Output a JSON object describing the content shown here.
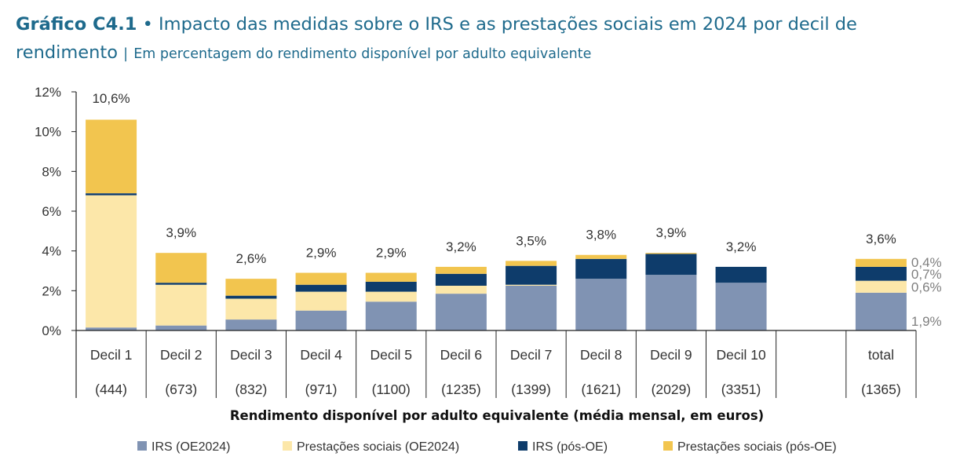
{
  "header": {
    "label": "Gráfico C4.1",
    "bullet": "•",
    "title": "Impacto das medidas sobre o IRS e as prestações sociais em 2024 por decil de rendimento",
    "separator": "|",
    "subtitle": "Em percentagem do rendimento disponível por adulto equivalente"
  },
  "colors": {
    "irs_oe": "#8093b3",
    "prest_oe": "#fce7a9",
    "irs_pos": "#0e3c6b",
    "prest_pos": "#f2c54f",
    "axis": "#222222"
  },
  "chart_data": {
    "type": "bar",
    "stacked": true,
    "title": "Impacto das medidas sobre o IRS e as prestações sociais em 2024 por decil de rendimento",
    "xlabel": "Rendimento disponível por adulto equivalente (média mensal, em euros)",
    "ylabel": "",
    "ylim": [
      0,
      12
    ],
    "yticks": [
      "0%",
      "2%",
      "4%",
      "6%",
      "8%",
      "10%",
      "12%"
    ],
    "categories": [
      "Decil 1",
      "Decil 2",
      "Decil 3",
      "Decil 4",
      "Decil 5",
      "Decil 6",
      "Decil 7",
      "Decil 8",
      "Decil 9",
      "Decil 10",
      "",
      "total"
    ],
    "incomes": [
      "(444)",
      "(673)",
      "(832)",
      "(971)",
      "(1100)",
      "(1235)",
      "(1399)",
      "(1621)",
      "(2029)",
      "(3351)",
      "",
      "(1365)"
    ],
    "total_labels": [
      "10,6%",
      "3,9%",
      "2,6%",
      "2,9%",
      "2,9%",
      "3,2%",
      "3,5%",
      "3,8%",
      "3,9%",
      "3,2%",
      "",
      "3,6%"
    ],
    "series": [
      {
        "name": "IRS (OE2024)",
        "key": "irs_oe",
        "values": [
          0.15,
          0.25,
          0.55,
          1.0,
          1.45,
          1.85,
          2.25,
          2.6,
          2.8,
          2.4,
          null,
          1.9
        ]
      },
      {
        "name": "Prestações sociais (OE2024)",
        "key": "prest_oe",
        "values": [
          6.65,
          2.05,
          1.05,
          0.95,
          0.5,
          0.4,
          0.05,
          0.0,
          0.0,
          0.0,
          null,
          0.6
        ]
      },
      {
        "name": "IRS (pós-OE)",
        "key": "irs_pos",
        "values": [
          0.1,
          0.1,
          0.15,
          0.35,
          0.5,
          0.6,
          0.95,
          1.0,
          1.05,
          0.8,
          null,
          0.7
        ]
      },
      {
        "name": "Prestações sociais (pós-OE)",
        "key": "prest_pos",
        "values": [
          3.7,
          1.5,
          0.85,
          0.6,
          0.45,
          0.35,
          0.25,
          0.2,
          0.05,
          0.0,
          null,
          0.4
        ]
      }
    ],
    "total_component_labels": [
      "1,9%",
      "0,6%",
      "0,7%",
      "0,4%"
    ]
  }
}
